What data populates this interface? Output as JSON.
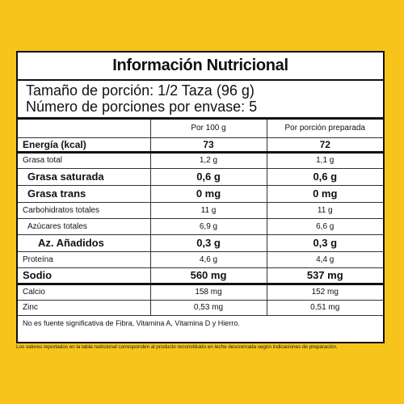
{
  "title": "Información Nutricional",
  "serving": {
    "size": "Tamaño de porción: 1/2 Taza (96 g)",
    "count": "Número de porciones por envase: 5"
  },
  "columns": {
    "per100": "Por 100 g",
    "prepared": "Por porción preparada"
  },
  "energy": {
    "label": "Energía (kcal)",
    "per100": "73",
    "prepared": "72"
  },
  "rows": [
    {
      "label": "Grasa total",
      "per100": "1,2 g",
      "prepared": "1,1 g"
    },
    {
      "label": "Grasa saturada",
      "per100": "0,6 g",
      "prepared": "0,6 g"
    },
    {
      "label": "Grasa trans",
      "per100": "0 mg",
      "prepared": "0 mg"
    },
    {
      "label": "Carbohidratos totales",
      "per100": "11 g",
      "prepared": "11 g"
    },
    {
      "label": "Azúcares totales",
      "per100": "6,9 g",
      "prepared": "6,6 g"
    },
    {
      "label": "Az. Añadidos",
      "per100": "0,3 g",
      "prepared": "0,3 g"
    },
    {
      "label": "Proteína",
      "per100": "4,6 g",
      "prepared": "4,4 g"
    },
    {
      "label": "Sodio",
      "per100": "560 mg",
      "prepared": "537 mg"
    },
    {
      "label": "Calcio",
      "per100": "158 mg",
      "prepared": "152 mg"
    },
    {
      "label": "Zinc",
      "per100": "0,53 mg",
      "prepared": "0,51 mg"
    }
  ],
  "footnote": "No es fuente significativa de Fibra, Vitamina A, Vitamina D y Hierro.",
  "bottom_note": "Los valores reportados en la tabla nutricional corresponden al producto reconstituido en leche descremada según indicaciones de preparación.",
  "colors": {
    "background": "#f7c41b",
    "panel": "#ffffff",
    "border": "#111111"
  }
}
